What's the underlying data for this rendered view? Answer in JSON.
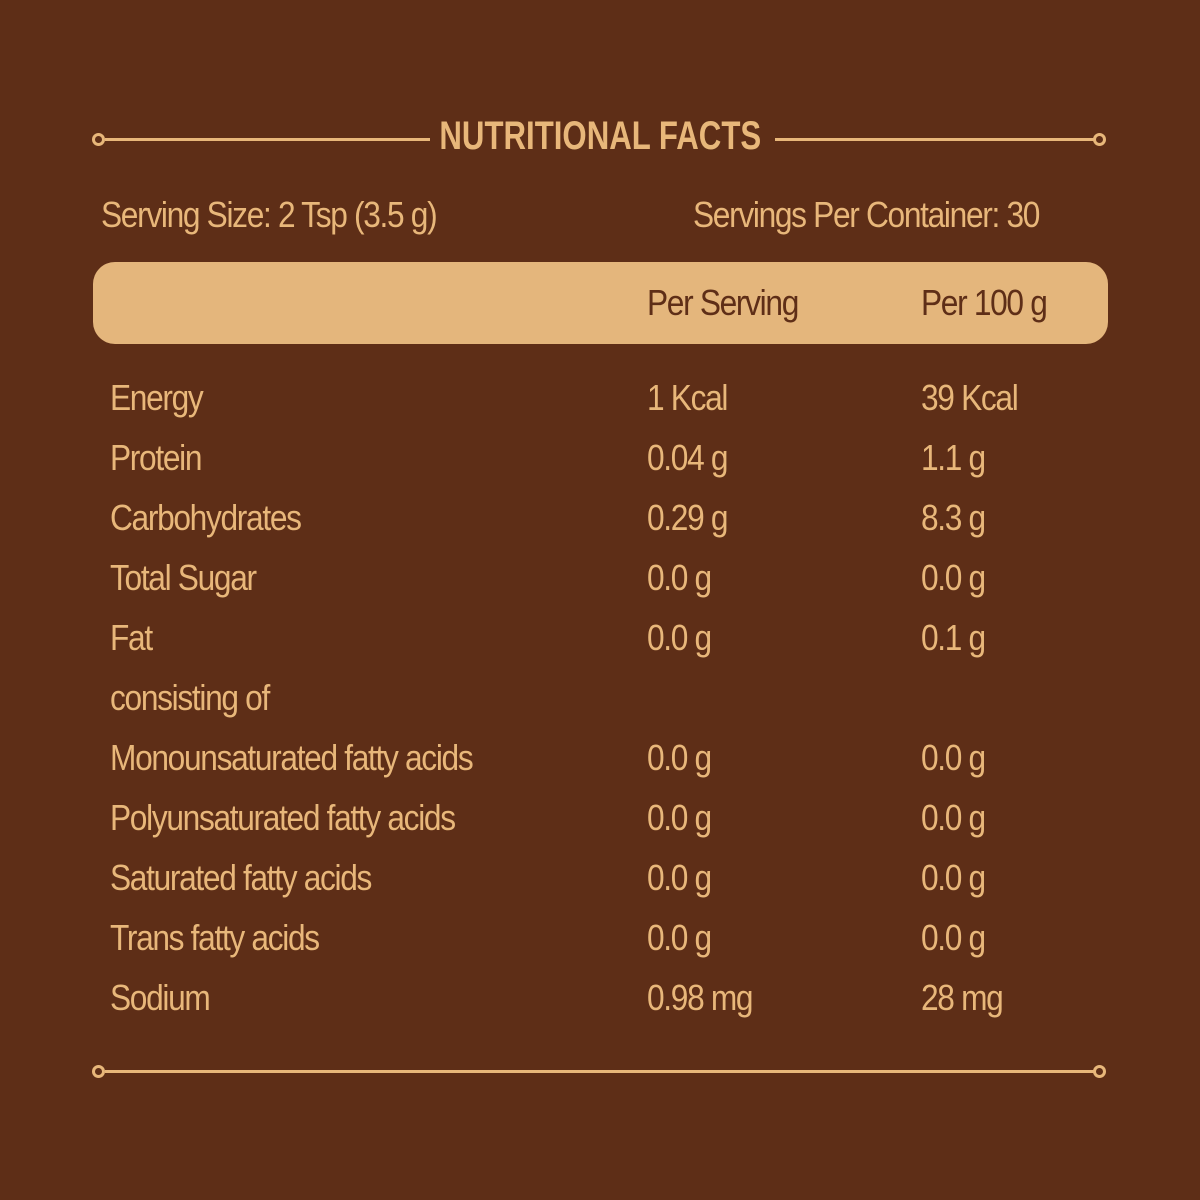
{
  "title": "NUTRITIONAL FACTS",
  "serving_size": "Serving Size: 2 Tsp (3.5 g)",
  "servings_per_container": "Servings Per Container: 30",
  "columns": {
    "per_serving": "Per Serving",
    "per_100g": "Per 100 g"
  },
  "rows": [
    {
      "label": "Energy",
      "per_serving": "1 Kcal",
      "per_100g": "39 Kcal"
    },
    {
      "label": "Protein",
      "per_serving": "0.04 g",
      "per_100g": "1.1 g"
    },
    {
      "label": "Carbohydrates",
      "per_serving": "0.29 g",
      "per_100g": "8.3 g"
    },
    {
      "label": "Total Sugar",
      "per_serving": "0.0 g",
      "per_100g": "0.0 g"
    },
    {
      "label": "Fat",
      "per_serving": "0.0 g",
      "per_100g": "0.1 g"
    },
    {
      "label": "consisting of",
      "per_serving": "",
      "per_100g": ""
    },
    {
      "label": "Monounsaturated fatty acids",
      "per_serving": "0.0 g",
      "per_100g": "0.0 g"
    },
    {
      "label": "Polyunsaturated fatty acids",
      "per_serving": "0.0 g",
      "per_100g": "0.0 g"
    },
    {
      "label": "Saturated fatty acids",
      "per_serving": "0.0 g",
      "per_100g": "0.0 g"
    },
    {
      "label": "Trans fatty acids",
      "per_serving": "0.0 g",
      "per_100g": "0.0 g"
    },
    {
      "label": "Sodium",
      "per_serving": "0.98 mg",
      "per_100g": "28 mg"
    }
  ],
  "colors": {
    "background": "#5E2E17",
    "text": "#E8B77A",
    "header_band": "#E4B67C"
  }
}
